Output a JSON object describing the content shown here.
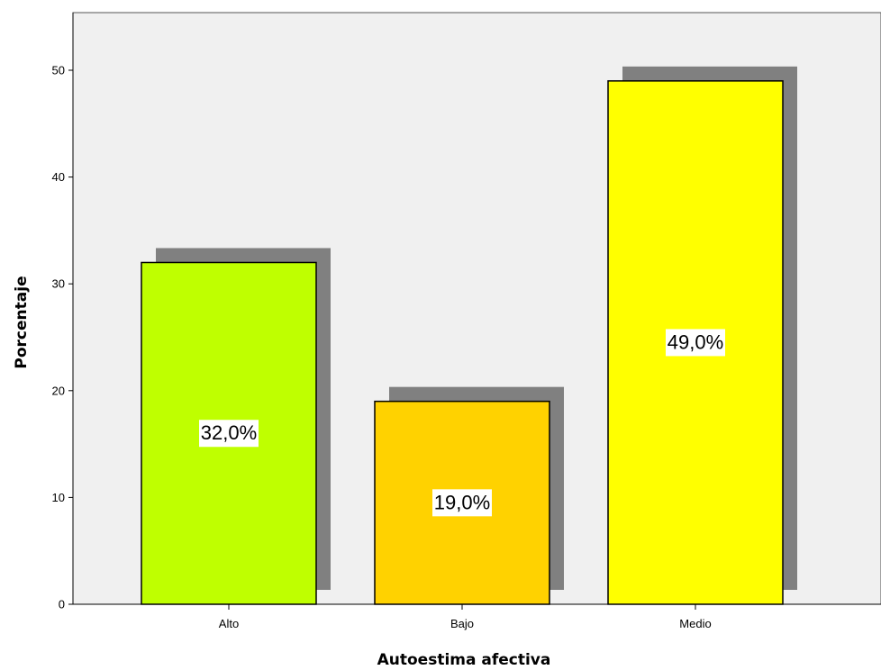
{
  "chart_data": {
    "type": "bar",
    "title": "",
    "xlabel": "Autoestima afectiva",
    "ylabel": "Porcentaje",
    "categories": [
      "Alto",
      "Bajo",
      "Medio"
    ],
    "values": [
      32.0,
      19.0,
      49.0
    ],
    "data_labels": [
      "32,0%",
      "19,0%",
      "49,0%"
    ],
    "bar_colors": [
      "#bfff00",
      "#ffd200",
      "#ffff00"
    ],
    "shadow_color": "#808080",
    "plot_background": "#f0f0f0",
    "ylim": [
      0,
      55
    ],
    "yticks": [
      0,
      10,
      20,
      30,
      40,
      50
    ],
    "ytick_labels": [
      "0",
      "10",
      "20",
      "30",
      "40",
      "50"
    ],
    "grid": false,
    "legend": "none"
  }
}
